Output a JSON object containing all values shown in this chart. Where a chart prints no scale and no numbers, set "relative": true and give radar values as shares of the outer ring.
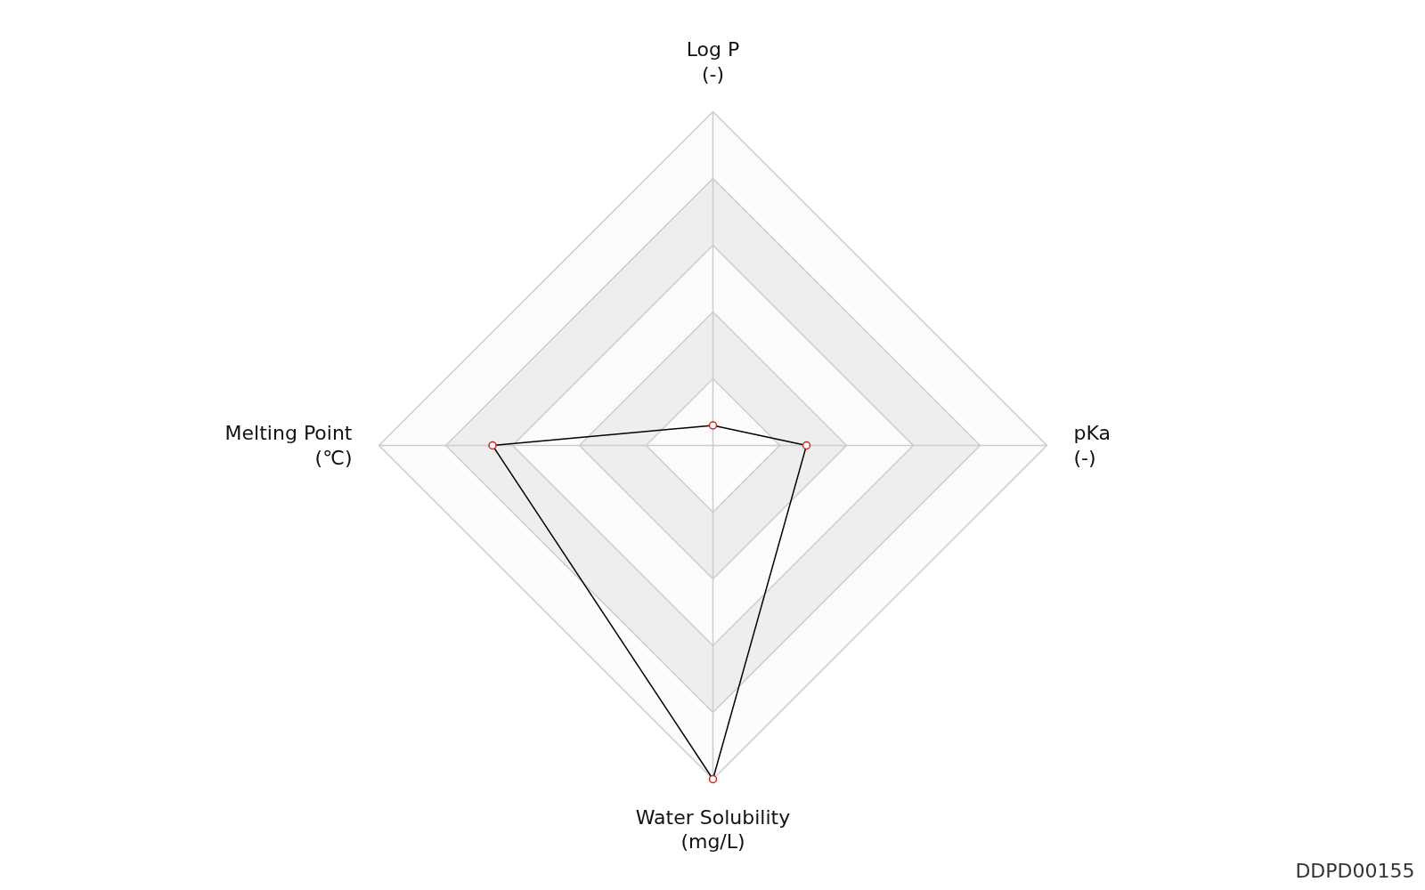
{
  "chart_data": {
    "type": "radar",
    "relative": true,
    "grid": true,
    "marker": "circle",
    "line_style": "solid",
    "categories": [
      "Log P\n(-)",
      "pKa\n(-)",
      "Water Solubility\n(mg/L)",
      "Melting Point\n(℃)"
    ],
    "series": [
      {
        "color": "#000000",
        "colors": [
          "#cc2222",
          "#cc2222",
          "#cc2222",
          "#cc2222"
        ],
        "values": [
          0.06,
          0.28,
          1.0,
          0.66
        ]
      }
    ],
    "annotations": [
      "DDPD00155"
    ]
  }
}
